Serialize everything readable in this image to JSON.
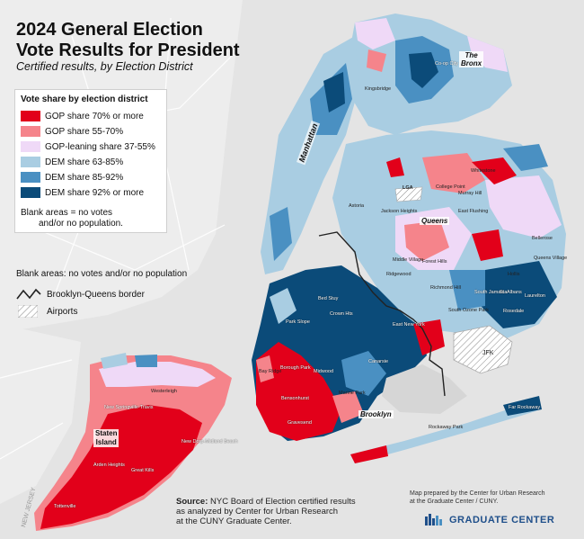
{
  "header": {
    "title_line1": "2024 General Election",
    "title_line2": "Vote Results for President",
    "subtitle": "Certified results, by Election District"
  },
  "legend": {
    "title": "Vote share by election district",
    "items": [
      {
        "label": "GOP share 70% or more",
        "color": "#e2001a"
      },
      {
        "label": "GOP share 55-70%",
        "color": "#f5848b"
      },
      {
        "label": "GOP-leaning share 37-55%",
        "color": "#efd9f7"
      },
      {
        "label": "DEM share 63-85%",
        "color": "#a9cde2"
      },
      {
        "label": "DEM share 85-92%",
        "color": "#4a90c2"
      },
      {
        "label": "DEM share 92% or more",
        "color": "#0b4b79"
      }
    ],
    "blank_note_line1": "Blank areas = no votes",
    "blank_note_line2": "and/or no population."
  },
  "key": {
    "blank_areas": "Blank areas: no votes and/or no population",
    "border": "Brooklyn-Queens border",
    "airports": "Airports"
  },
  "boroughs": {
    "bronx": "The\nBronx",
    "manhattan": "Manhattan",
    "queens": "Queens",
    "brooklyn": "Brooklyn",
    "staten_island_line1": "Staten",
    "staten_island_line2": "Island"
  },
  "places": {
    "kingsbridge": "Kingsbridge",
    "coop_city": "Co-op City",
    "lga": "LGA",
    "jfk": "JFK",
    "whitestone": "Whitestone",
    "college_point": "College Point",
    "murray_hill": "Murray Hill",
    "east_flushing": "East Flushing",
    "astoria": "Astoria",
    "jackson_heights": "Jackson Heights",
    "middle_village": "Middle Village",
    "forest_hills": "Forest Hills",
    "ridgewood": "Ridgewood",
    "richmond_hill": "Richmond Hill",
    "south_ozone_park": "South Ozone Park",
    "st_albans": "St. Albans",
    "south_jamaica": "South Jamaica",
    "bellerose": "Bellerose",
    "queens_village": "Queens Village",
    "hollis": "Hollis",
    "laurelton": "Laurelton",
    "rosedale": "Rosedale",
    "east_new_york": "East New York",
    "crown_heights": "Crown Hts",
    "bed_stuy": "Bed Stuy",
    "park_slope": "Park Slope",
    "borough_park": "Borough Park",
    "bay_ridge": "Bay Ridge",
    "bensonhurst": "Bensonhurst",
    "midwood": "Midwood",
    "canarsie": "Canarsie",
    "marine_park": "Marine Park",
    "gravesend": "Gravesend",
    "rockaway_park": "Rockaway Park",
    "far_rockaway": "Far Rockaway",
    "westerleigh": "Westerleigh",
    "new_springville": "New Springville-Travis",
    "new_dorp": "New Dorp-Midland Beach",
    "arden_heights": "Arden Heights",
    "great_kills": "Great Kills",
    "tottenville": "Tottenville"
  },
  "jerseys": "NEW JERSEY",
  "footer": {
    "source_label": "Source:",
    "source_line1": " NYC Board of Election certified results",
    "source_line2": "as analyzed by Center for Urban Research",
    "source_line3": "at the CUNY Graduate Center.",
    "credit_line1": "Map prepared by the Center for Urban Research",
    "credit_line2": "at the Graduate Center / CUNY.",
    "logo_text": "GRADUATE CENTER",
    "logo_color": "#1f4f8a"
  },
  "colors": {
    "water": "#dcdcdc",
    "land": "#ececec",
    "gop70": "#e2001a",
    "gop55": "#f5848b",
    "lean": "#efd9f7",
    "dem63": "#a9cde2",
    "dem85": "#4a90c2",
    "dem92": "#0b4b79"
  }
}
